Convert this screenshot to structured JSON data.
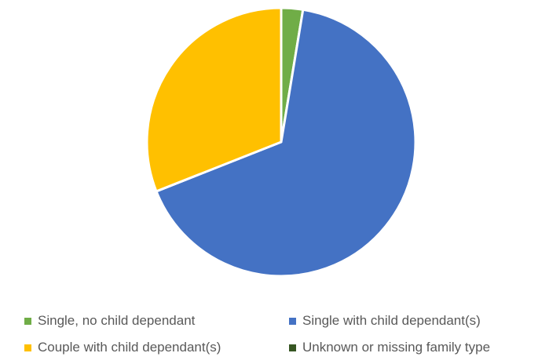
{
  "chart_data": {
    "type": "pie",
    "title": "",
    "categories": [
      "Single, no child dependant",
      "Single with child dependant(s)",
      "Couple with child dependant(s)",
      "Unknown or missing family type"
    ],
    "values": [
      2.6,
      66.4,
      31.0,
      0.0
    ],
    "colors": [
      "#70AD47",
      "#4472C4",
      "#FFC000",
      "#375623"
    ],
    "start_angle_deg": 0,
    "direction": "clockwise",
    "legend_position": "bottom"
  },
  "legend": {
    "items": [
      {
        "label": "Single, no child dependant",
        "color": "#70AD47"
      },
      {
        "label": "Single with child dependant(s)",
        "color": "#4472C4"
      },
      {
        "label": "Couple with child dependant(s)",
        "color": "#FFC000"
      },
      {
        "label": "Unknown or missing family type",
        "color": "#375623"
      }
    ]
  }
}
